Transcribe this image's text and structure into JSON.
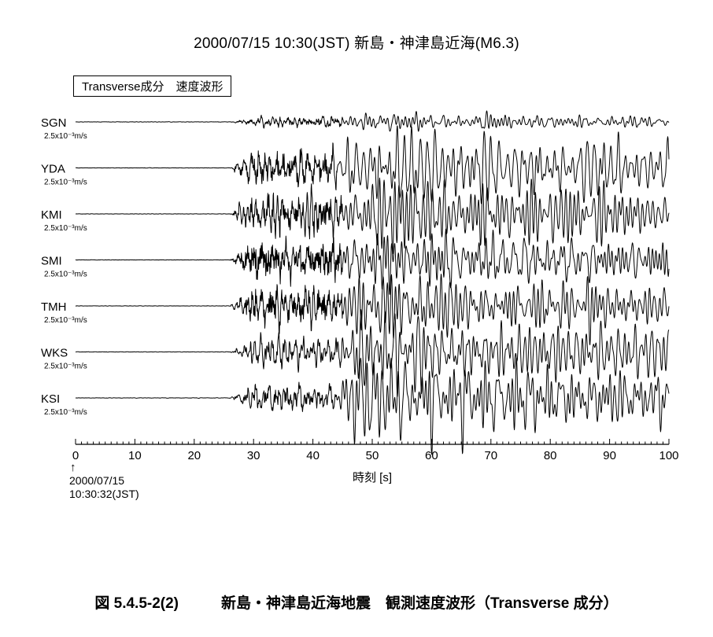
{
  "title": "2000/07/15  10:30(JST)  新島・神津島近海(M6.3)",
  "component_label": "Transverse成分　速度波形",
  "origin": {
    "arrow": "↑",
    "date": "2000/07/15",
    "time": "10:30:32(JST)"
  },
  "caption": {
    "figure_no": "図 5.4.5-2(2)",
    "text": "新島・神津島近海地震　観測速度波形（Transverse 成分）"
  },
  "colors": {
    "trace": "#000000",
    "axis": "#000000"
  },
  "chart_data": {
    "type": "line",
    "title": "2000/07/15  10:30(JST)  新島・神津島近海(M6.3)",
    "xlabel": "時刻 [s]",
    "ylabel": "",
    "xlim": [
      0,
      100
    ],
    "xticks": [
      0,
      10,
      20,
      30,
      40,
      50,
      60,
      70,
      80,
      90,
      100
    ],
    "grid": false,
    "scale_label": "2.5x10⁻³m/s",
    "stations": [
      {
        "name": "SGN",
        "scale": "2.5x10⁻³m/s",
        "p_onset": 26,
        "s_onset": 45,
        "amp_p": 0.1,
        "amp_s": 0.2,
        "seed": 3
      },
      {
        "name": "YDA",
        "scale": "2.5x10⁻³m/s",
        "p_onset": 26,
        "s_onset": 44,
        "amp_p": 0.35,
        "amp_s": 1.0,
        "seed": 7
      },
      {
        "name": "KMI",
        "scale": "2.5x10⁻³m/s",
        "p_onset": 26,
        "s_onset": 45,
        "amp_p": 0.4,
        "amp_s": 0.95,
        "seed": 11
      },
      {
        "name": "SMI",
        "scale": "2.5x10⁻³m/s",
        "p_onset": 26,
        "s_onset": 45,
        "amp_p": 0.4,
        "amp_s": 0.9,
        "seed": 17
      },
      {
        "name": "TMH",
        "scale": "2.5x10⁻³m/s",
        "p_onset": 26,
        "s_onset": 45,
        "amp_p": 0.4,
        "amp_s": 0.85,
        "seed": 23
      },
      {
        "name": "WKS",
        "scale": "2.5x10⁻³m/s",
        "p_onset": 26,
        "s_onset": 45,
        "amp_p": 0.3,
        "amp_s": 0.85,
        "seed": 29
      },
      {
        "name": "KSI",
        "scale": "2.5x10⁻³m/s",
        "p_onset": 26,
        "s_onset": 44,
        "amp_p": 0.25,
        "amp_s": 1.0,
        "seed": 31
      }
    ]
  }
}
